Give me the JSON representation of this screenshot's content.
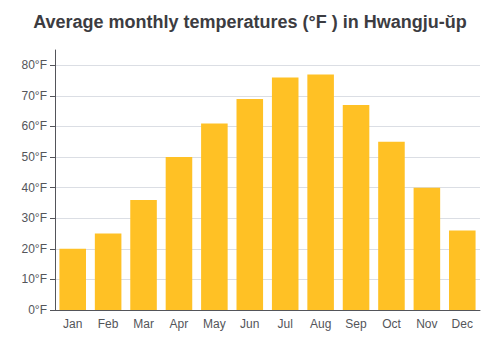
{
  "chart_data": {
    "type": "bar",
    "title": "Average monthly temperatures (°F ) in Hwangju-ŭp",
    "categories": [
      "Jan",
      "Feb",
      "Mar",
      "Apr",
      "May",
      "Jun",
      "Jul",
      "Aug",
      "Sep",
      "Oct",
      "Nov",
      "Dec"
    ],
    "values": [
      20,
      25,
      36,
      50,
      61,
      69,
      76,
      77,
      67,
      55,
      40,
      26
    ],
    "color": "#FFC125",
    "ylim": [
      0,
      85
    ],
    "yticks": [
      {
        "value": 0,
        "label": "0°F"
      },
      {
        "value": 10,
        "label": "10°F"
      },
      {
        "value": 20,
        "label": "20°F"
      },
      {
        "value": 30,
        "label": "30°F"
      },
      {
        "value": 40,
        "label": "40°F"
      },
      {
        "value": 50,
        "label": "50°F"
      },
      {
        "value": 60,
        "label": "60°F"
      },
      {
        "value": 70,
        "label": "70°F"
      },
      {
        "value": 80,
        "label": "80°F"
      }
    ],
    "grid": true
  }
}
